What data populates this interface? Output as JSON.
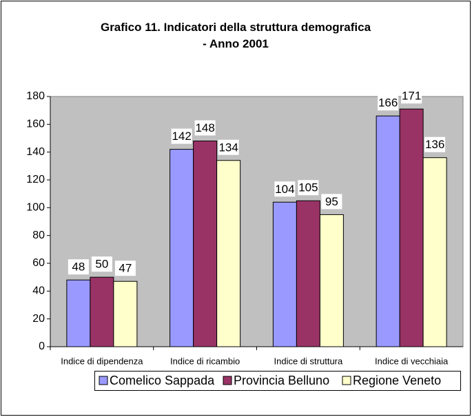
{
  "chart_data": {
    "type": "bar",
    "title": "Grafico 11. Indicatori della struttura demografica - Anno 2001",
    "categories": [
      "Indice di dipendenza",
      "Indice di ricambio",
      "Indice di struttura",
      "Indice di vecchiaia"
    ],
    "series": [
      {
        "name": "Comelico Sappada",
        "color": "#9999ff",
        "values": [
          48,
          142,
          104,
          166
        ]
      },
      {
        "name": "Provincia Belluno",
        "color": "#993366",
        "values": [
          50,
          148,
          105,
          171
        ]
      },
      {
        "name": "Regione Veneto",
        "color": "#ffffcc",
        "values": [
          47,
          134,
          95,
          136
        ]
      }
    ],
    "ylim": [
      0,
      180
    ],
    "yticks": [
      0,
      20,
      40,
      60,
      80,
      100,
      120,
      140,
      160,
      180
    ],
    "plot_background": "#c0c0c0",
    "legend": "bottom"
  }
}
